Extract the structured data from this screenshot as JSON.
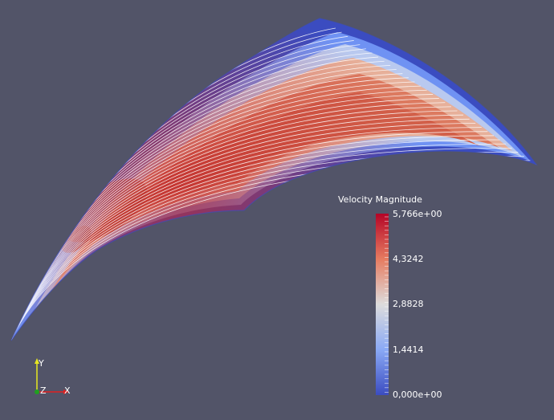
{
  "legend": {
    "title": "Velocity Magnitude",
    "ticks": [
      "5,766e+00",
      "4,3242",
      "2,8828",
      "1,4414",
      "0,000e+00"
    ],
    "colors": [
      "#3b4cc0",
      "#6f92f3",
      "#dddcdc",
      "#e57058",
      "#b40426"
    ]
  },
  "axes": {
    "y_label": "Y",
    "x_label": "X",
    "z_label": "Z",
    "colors": {
      "x": "#e02020",
      "y": "#e8e820",
      "z": "#20a020"
    }
  },
  "scene": {
    "background": "#525468",
    "surface": "blade-shaped flow domain colored by velocity magnitude with white streamlines"
  }
}
